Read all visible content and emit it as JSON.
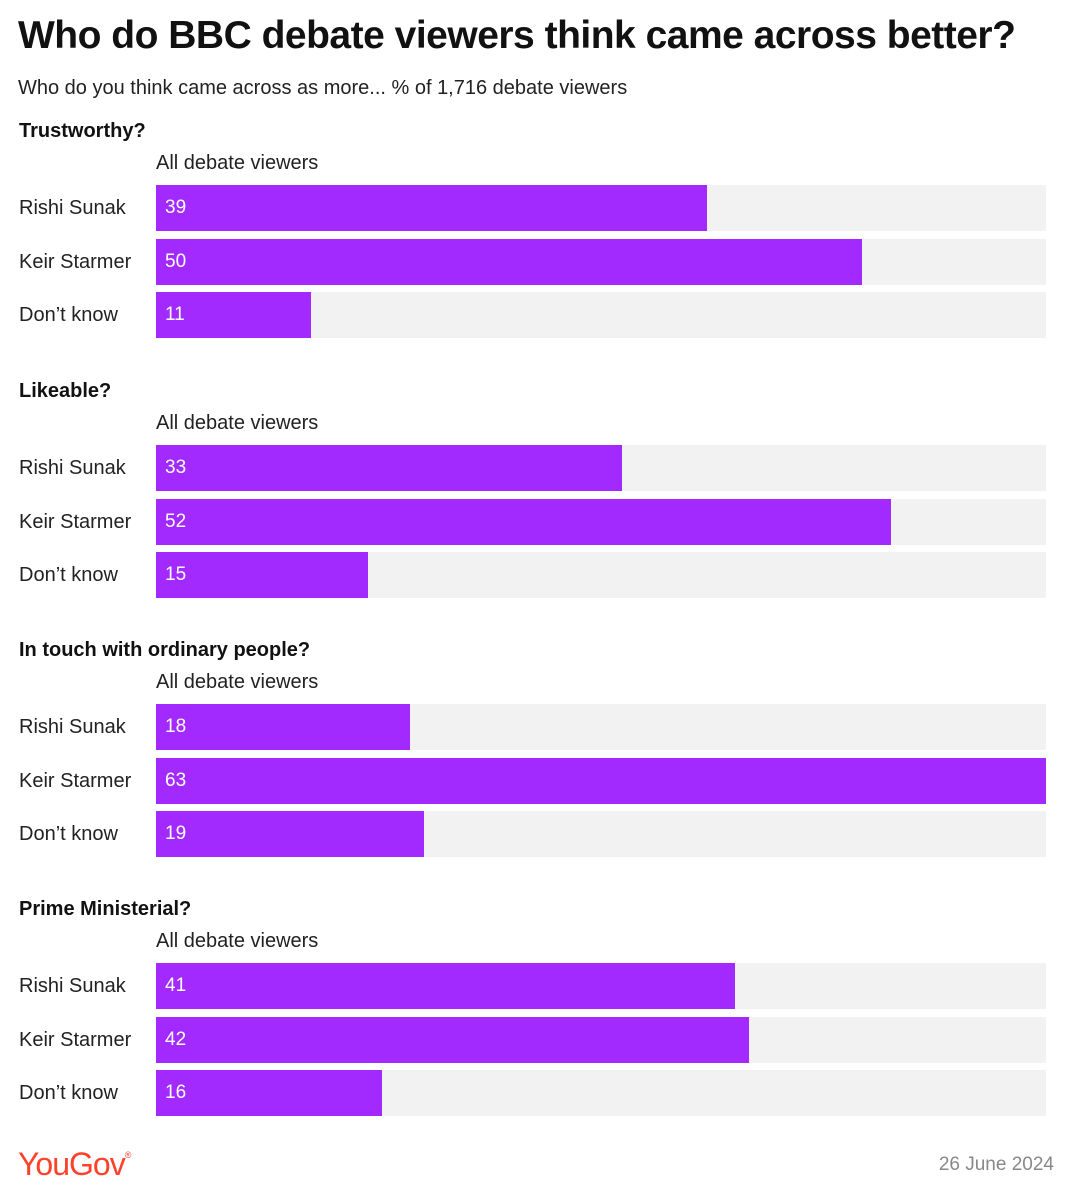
{
  "title": "Who do BBC debate viewers think came across better?",
  "subtitle": "Who do you think came across as more... % of 1,716 debate viewers",
  "footer": {
    "logo": "YouGov",
    "date": "26 June 2024"
  },
  "colors": {
    "bar": "#a22aff",
    "track": "#f2f2f2",
    "logo": "#ff412c"
  },
  "chart_data": {
    "type": "bar",
    "orientation": "horizontal",
    "xlim": [
      0,
      63
    ],
    "categories": [
      "Rishi Sunak",
      "Keir Starmer",
      "Don’t know"
    ],
    "panels": [
      {
        "title": "Trustworthy?",
        "group": "All debate viewers",
        "values": [
          39,
          50,
          11
        ]
      },
      {
        "title": "Likeable?",
        "group": "All debate viewers",
        "values": [
          33,
          52,
          15
        ]
      },
      {
        "title": "In touch with ordinary people?",
        "group": "All debate viewers",
        "values": [
          18,
          63,
          19
        ]
      },
      {
        "title": "Prime Ministerial?",
        "group": "All debate viewers",
        "values": [
          41,
          42,
          16
        ]
      }
    ]
  }
}
